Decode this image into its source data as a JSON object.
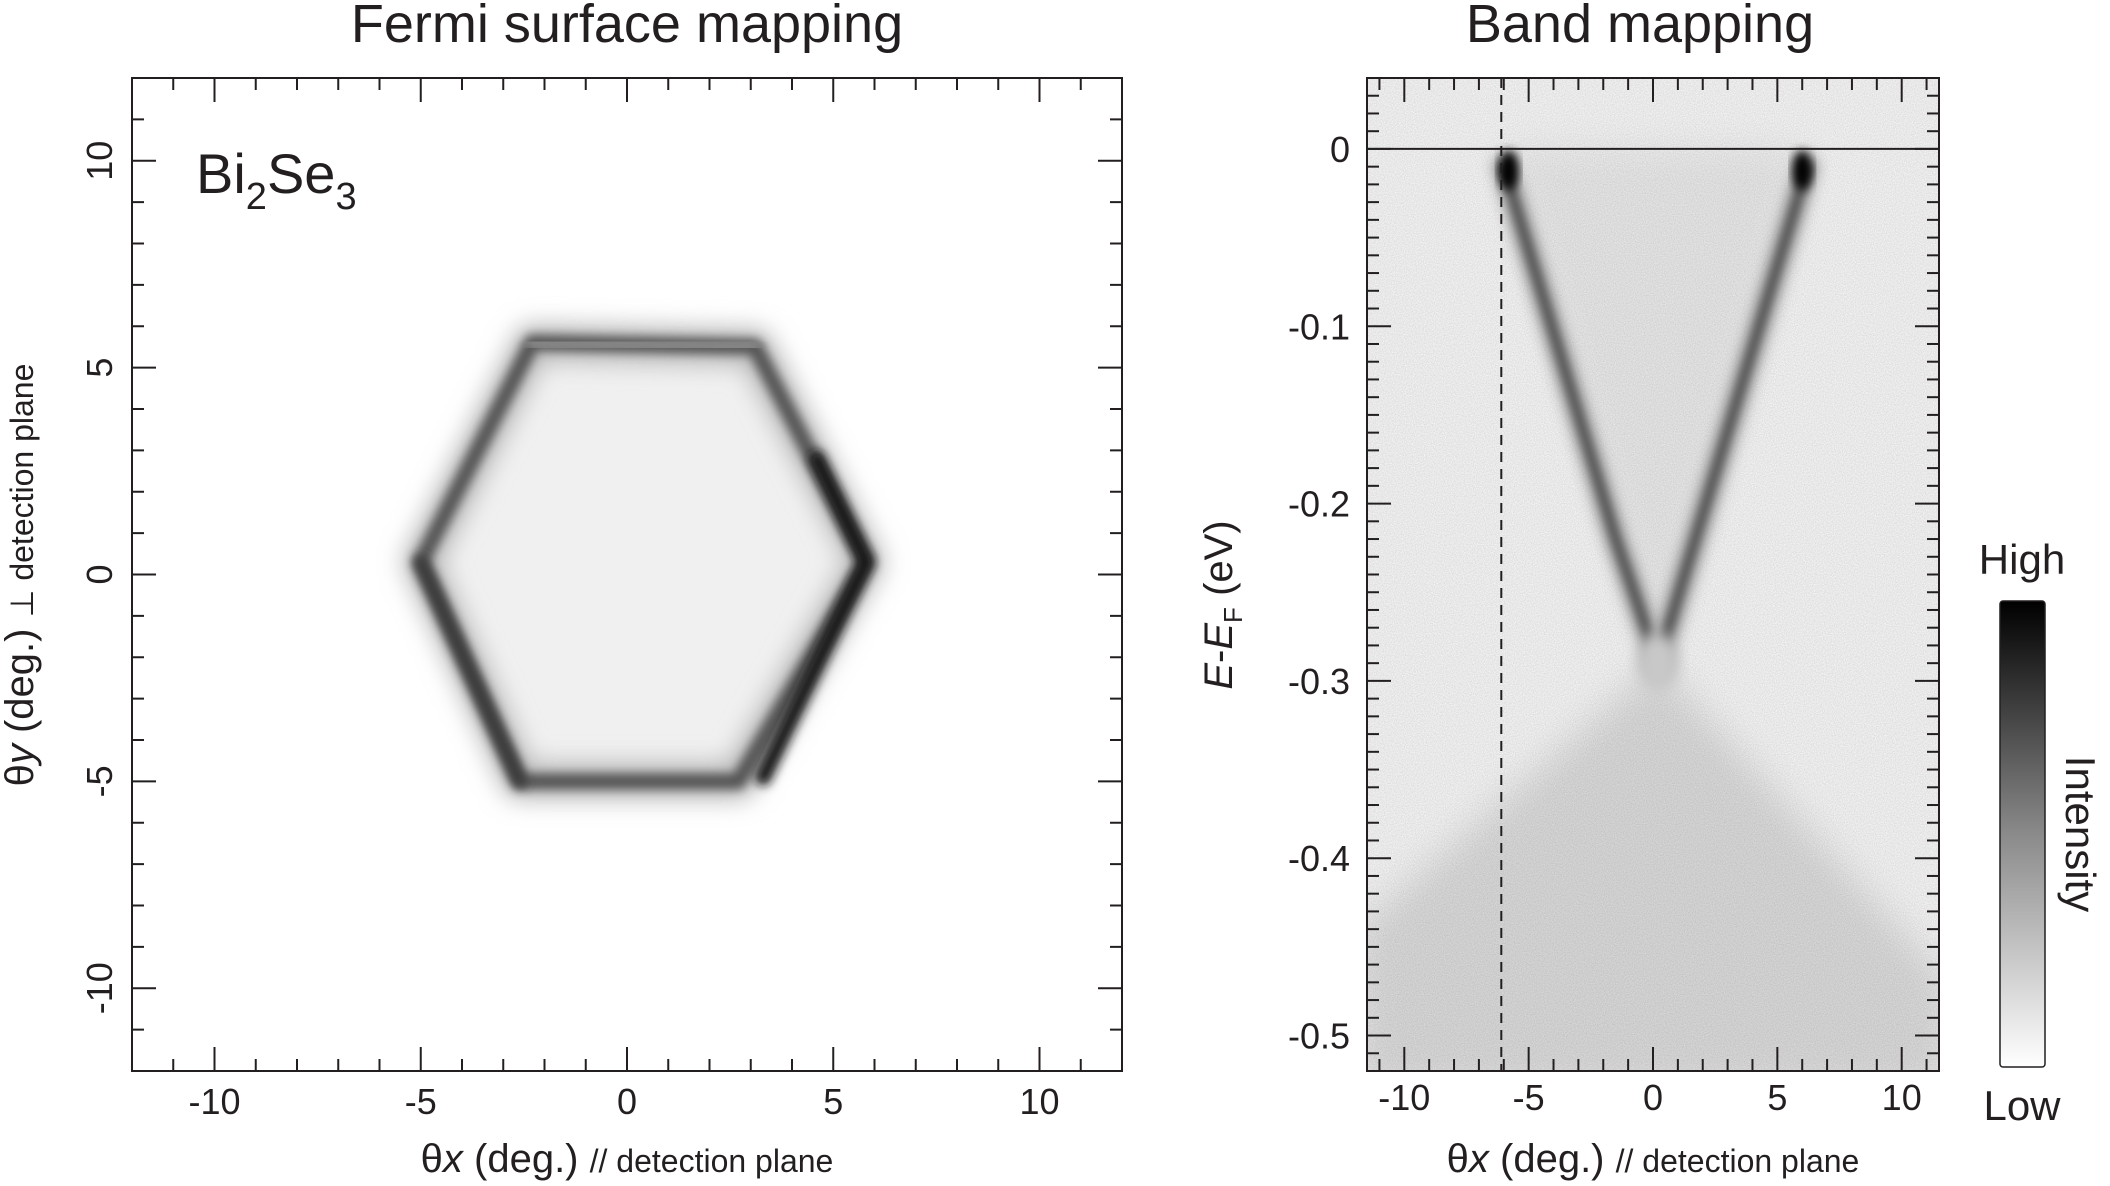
{
  "figure": {
    "colors": {
      "ink": "#231f20",
      "background": "#ffffff",
      "map_high": "#0a0a0a",
      "map_low": "#f8f8f8"
    }
  },
  "chart_data": [
    {
      "type": "heatmap",
      "title": "Fermi surface mapping",
      "annotation": {
        "text": "Bi",
        "sub1": "2",
        "text2": "Se",
        "sub2": "3"
      },
      "xlabel": {
        "sym": "θ",
        "italic": "x",
        "unit": " (deg.) ",
        "suffix": "// detection plane"
      },
      "ylabel": {
        "sym": "θ",
        "italic": "y",
        "unit": " (deg.) ",
        "suffix": "⊥ detection plane"
      },
      "xlim": [
        -12,
        12
      ],
      "ylim": [
        -12,
        12
      ],
      "xticks": [
        -10,
        -5,
        0,
        5,
        10
      ],
      "yticks": [
        -10,
        -5,
        0,
        5,
        10
      ],
      "xtick_labels": [
        "-10",
        "-5",
        "0",
        "5",
        "10"
      ],
      "ytick_labels": [
        "-10",
        "-5",
        "0",
        "5",
        "10"
      ],
      "grid": false,
      "colormap": "grayscale (white = low, black = high)",
      "features": {
        "fermi_contour": {
          "shape": "hexagonal ring",
          "center": [
            0.2,
            0.3
          ],
          "x_extent": [
            -5.0,
            5.9
          ],
          "y_extent": [
            -5.4,
            6.1
          ],
          "hexagon_vertices": [
            [
              5.8,
              0.3
            ],
            [
              3.1,
              5.5
            ],
            [
              -2.3,
              5.6
            ],
            [
              -5.0,
              0.3
            ],
            [
              -2.6,
              -5.0
            ],
            [
              2.7,
              -5.0
            ]
          ],
          "intensity_stronger_on": [
            "right (θx ≈ 5.8)",
            "bottom (θy ≈ -5)"
          ]
        }
      }
    },
    {
      "type": "heatmap",
      "title": "Band mapping",
      "xlabel": {
        "sym": "θ",
        "italic": "x",
        "unit": " (deg.) ",
        "suffix": "// detection plane"
      },
      "ylabel": {
        "e1": "E",
        "dash": "-",
        "e2": "E",
        "sub": "F",
        "unit": " (eV)"
      },
      "xlim": [
        -11.5,
        11.5
      ],
      "ylim": [
        -0.52,
        0.04
      ],
      "xticks": [
        -10,
        -5,
        0,
        5,
        10
      ],
      "yticks": [
        0,
        -0.1,
        -0.2,
        -0.3,
        -0.4,
        -0.5
      ],
      "xtick_labels": [
        "-10",
        "-5",
        "0",
        "5",
        "10"
      ],
      "ytick_labels": [
        "0",
        "-0.1",
        "-0.2",
        "-0.3",
        "-0.4",
        "-0.5"
      ],
      "grid": false,
      "reference_lines": [
        {
          "orientation": "horizontal",
          "y": 0,
          "style": "solid"
        },
        {
          "orientation": "vertical",
          "x": -6.1,
          "style": "dashed"
        }
      ],
      "features": {
        "dirac_point": {
          "x": 0.2,
          "y": -0.29
        },
        "fermi_level_crossings": [
          -6.0,
          6.2
        ],
        "upper_cone_branches": [
          {
            "x": [
              -6.0,
              -4.5,
              -3.0,
              -1.5,
              0.2
            ],
            "y": [
              -0.01,
              -0.08,
              -0.15,
              -0.22,
              -0.29
            ]
          },
          {
            "x": [
              6.2,
              4.7,
              3.2,
              1.7,
              0.2
            ],
            "y": [
              -0.01,
              -0.08,
              -0.15,
              -0.22,
              -0.29
            ]
          }
        ],
        "bulk_valence_band": {
          "apex": [
            0.2,
            -0.29
          ],
          "x_edge_at_bottom": [
            -11.5,
            11.5
          ],
          "bottom_y": -0.52
        }
      }
    }
  ],
  "colorbar": {
    "high_label": "High",
    "low_label": "Low",
    "title": "Intensity"
  }
}
